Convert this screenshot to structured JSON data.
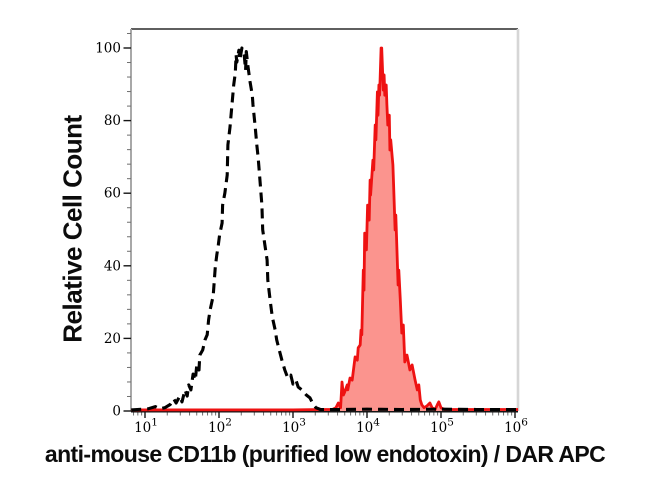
{
  "figure": {
    "ylabel": "Relative Cell Count",
    "xlabel": "anti-mouse CD11b (purified low endotoxin) / DAR APC"
  },
  "colors": {
    "background": "#ffffff",
    "frame_top": "#5f5f5f",
    "frame_right": "#d6d6d6",
    "frame_left": "#a8a8a8",
    "axis_line": "#151515",
    "major_tick": "#151515",
    "minor_tick": "#6e6e6e",
    "tick_text": "#000000",
    "dashed_series": "#000000",
    "solid_series_stroke": "#ee1212",
    "solid_series_fill": "#fb948e"
  },
  "chart_data": {
    "type": "area",
    "subtype": "flow-cytometry-overlay-histogram",
    "title": "",
    "xlabel": "anti-mouse CD11b (purified low endotoxin) / DAR APC",
    "ylabel": "Relative Cell Count",
    "x_scale": "log10",
    "xlim": [
      6.5,
      1100000
    ],
    "ylim": [
      0,
      105
    ],
    "x_ticks": [
      10,
      100,
      1000,
      10000,
      100000,
      1000000
    ],
    "x_tick_base": "10",
    "x_tick_exponents": [
      "1",
      "2",
      "3",
      "4",
      "5",
      "6"
    ],
    "x_minor_ticks": "2-9 each decade",
    "y_ticks": [
      "0",
      "20",
      "40",
      "60",
      "80",
      "100"
    ],
    "y_tick_values": [
      0,
      20,
      40,
      60,
      80,
      100
    ],
    "y_minor_step": 4,
    "grid": false,
    "legend": "none",
    "series": [
      {
        "name": "red filled histogram (stained sample)",
        "line": "solid",
        "color": "#ee1212",
        "fill": "#fb948e",
        "stroke_width": 2.8,
        "peak_x": 15800,
        "peak_y": 100,
        "points": [
          [
            6.5,
            0.3
          ],
          [
            100,
            0.3
          ],
          [
            1000,
            0.3
          ],
          [
            2300,
            0.4
          ],
          [
            3400,
            0.4
          ],
          [
            3800,
            0.9
          ],
          [
            4100,
            2.2
          ],
          [
            4400,
            0.9
          ],
          [
            4600,
            8.0
          ],
          [
            4800,
            4.4
          ],
          [
            5000,
            5.2
          ],
          [
            5400,
            7.2
          ],
          [
            5500,
            5.8
          ],
          [
            5900,
            9.1
          ],
          [
            6300,
            8.5
          ],
          [
            6900,
            14.9
          ],
          [
            7400,
            14.0
          ],
          [
            7600,
            17.4
          ],
          [
            8100,
            18.2
          ],
          [
            8300,
            22.3
          ],
          [
            8500,
            21.0
          ],
          [
            8900,
            38.8
          ],
          [
            9100,
            33.3
          ],
          [
            9300,
            49.0
          ],
          [
            9800,
            44.4
          ],
          [
            10200,
            56.7
          ],
          [
            10700,
            52.6
          ],
          [
            11000,
            63.6
          ],
          [
            11200,
            59.5
          ],
          [
            12000,
            69.1
          ],
          [
            12300,
            66.4
          ],
          [
            12900,
            78.8
          ],
          [
            13200,
            74.7
          ],
          [
            13800,
            87.9
          ],
          [
            14100,
            81.5
          ],
          [
            14500,
            89.8
          ],
          [
            14800,
            87.0
          ],
          [
            15500,
            100
          ],
          [
            15800,
            100
          ],
          [
            16600,
            88.4
          ],
          [
            17000,
            92.6
          ],
          [
            17400,
            87.0
          ],
          [
            18200,
            89.8
          ],
          [
            18600,
            84.3
          ],
          [
            19100,
            78.8
          ],
          [
            20000,
            81.5
          ],
          [
            20400,
            71.9
          ],
          [
            20900,
            74.7
          ],
          [
            22400,
            67.8
          ],
          [
            22900,
            62.3
          ],
          [
            24000,
            49.9
          ],
          [
            24500,
            54.0
          ],
          [
            26300,
            34.7
          ],
          [
            26900,
            38.8
          ],
          [
            28200,
            30.6
          ],
          [
            29500,
            21.5
          ],
          [
            30900,
            23.7
          ],
          [
            32400,
            13.5
          ],
          [
            34700,
            15.4
          ],
          [
            38000,
            11.3
          ],
          [
            40700,
            12.7
          ],
          [
            44700,
            8.5
          ],
          [
            47900,
            5.8
          ],
          [
            50100,
            7.2
          ],
          [
            52500,
            3.0
          ],
          [
            55000,
            1.7
          ],
          [
            58900,
            0.9
          ],
          [
            64600,
            1.4
          ],
          [
            70800,
            2.2
          ],
          [
            75900,
            0.9
          ],
          [
            83200,
            0.4
          ],
          [
            89100,
            1.7
          ],
          [
            93300,
            2.5
          ],
          [
            100000,
            0.9
          ],
          [
            112000,
            0.4
          ],
          [
            300000,
            0.4
          ],
          [
            1100000,
            0.4
          ]
        ]
      },
      {
        "name": "black dashed histogram (control)",
        "line": "dashed",
        "color": "#000000",
        "fill": "none",
        "stroke_width": 3.1,
        "dash": [
          10,
          6
        ],
        "peak_x": 204,
        "peak_y": 100,
        "points": [
          [
            6.5,
            0.3
          ],
          [
            11,
            0.6
          ],
          [
            13.8,
            1.2
          ],
          [
            15.8,
            0.6
          ],
          [
            18.6,
            0.9
          ],
          [
            21.9,
            1.8
          ],
          [
            24.5,
            3.3
          ],
          [
            26.3,
            2.2
          ],
          [
            29.5,
            4.1
          ],
          [
            31.6,
            2.5
          ],
          [
            34.7,
            5.8
          ],
          [
            37.2,
            4.1
          ],
          [
            38.9,
            7.2
          ],
          [
            41.7,
            5.8
          ],
          [
            44.7,
            10.2
          ],
          [
            47.9,
            8.5
          ],
          [
            50.1,
            12.7
          ],
          [
            53.7,
            11.3
          ],
          [
            55,
            15.4
          ],
          [
            60.3,
            16.8
          ],
          [
            64.6,
            19.6
          ],
          [
            69.2,
            21.0
          ],
          [
            72.4,
            25.1
          ],
          [
            75.9,
            27.8
          ],
          [
            81.3,
            30.6
          ],
          [
            83.2,
            31.4
          ],
          [
            89.1,
            39.7
          ],
          [
            93.3,
            43.0
          ],
          [
            97.7,
            45.7
          ],
          [
            102,
            48.5
          ],
          [
            110,
            51.8
          ],
          [
            112,
            56.7
          ],
          [
            120,
            60.1
          ],
          [
            129,
            65.0
          ],
          [
            132,
            73.3
          ],
          [
            141,
            78.2
          ],
          [
            151,
            85.1
          ],
          [
            158,
            89.8
          ],
          [
            166,
            93.1
          ],
          [
            170,
            98.1
          ],
          [
            174,
            96.1
          ],
          [
            186,
            99.4
          ],
          [
            191,
            96.7
          ],
          [
            204,
            100
          ],
          [
            219,
            98.1
          ],
          [
            229,
            93.9
          ],
          [
            234,
            99.0
          ],
          [
            245,
            95.3
          ],
          [
            263,
            90.6
          ],
          [
            282,
            87.0
          ],
          [
            288,
            84.3
          ],
          [
            309,
            78.0
          ],
          [
            324,
            73.3
          ],
          [
            339,
            69.7
          ],
          [
            355,
            64.5
          ],
          [
            380,
            56.7
          ],
          [
            389,
            49.9
          ],
          [
            417,
            45.7
          ],
          [
            447,
            41.6
          ],
          [
            457,
            36.1
          ],
          [
            490,
            30.6
          ],
          [
            525,
            25.9
          ],
          [
            575,
            22.3
          ],
          [
            603,
            19.6
          ],
          [
            661,
            16.3
          ],
          [
            708,
            14.0
          ],
          [
            776,
            11.3
          ],
          [
            851,
            9.1
          ],
          [
            933,
            9.9
          ],
          [
            1000,
            7.4
          ],
          [
            1096,
            8.5
          ],
          [
            1175,
            6.6
          ],
          [
            1318,
            5.8
          ],
          [
            1514,
            4.4
          ],
          [
            1698,
            3.6
          ],
          [
            1862,
            1.9
          ],
          [
            2042,
            0.9
          ],
          [
            2344,
            0.4
          ],
          [
            4000,
            0.4
          ],
          [
            10000,
            0.5
          ],
          [
            30000,
            0.4
          ],
          [
            100000,
            0.5
          ],
          [
            300000,
            0.4
          ],
          [
            1100000,
            0.4
          ]
        ]
      }
    ]
  }
}
